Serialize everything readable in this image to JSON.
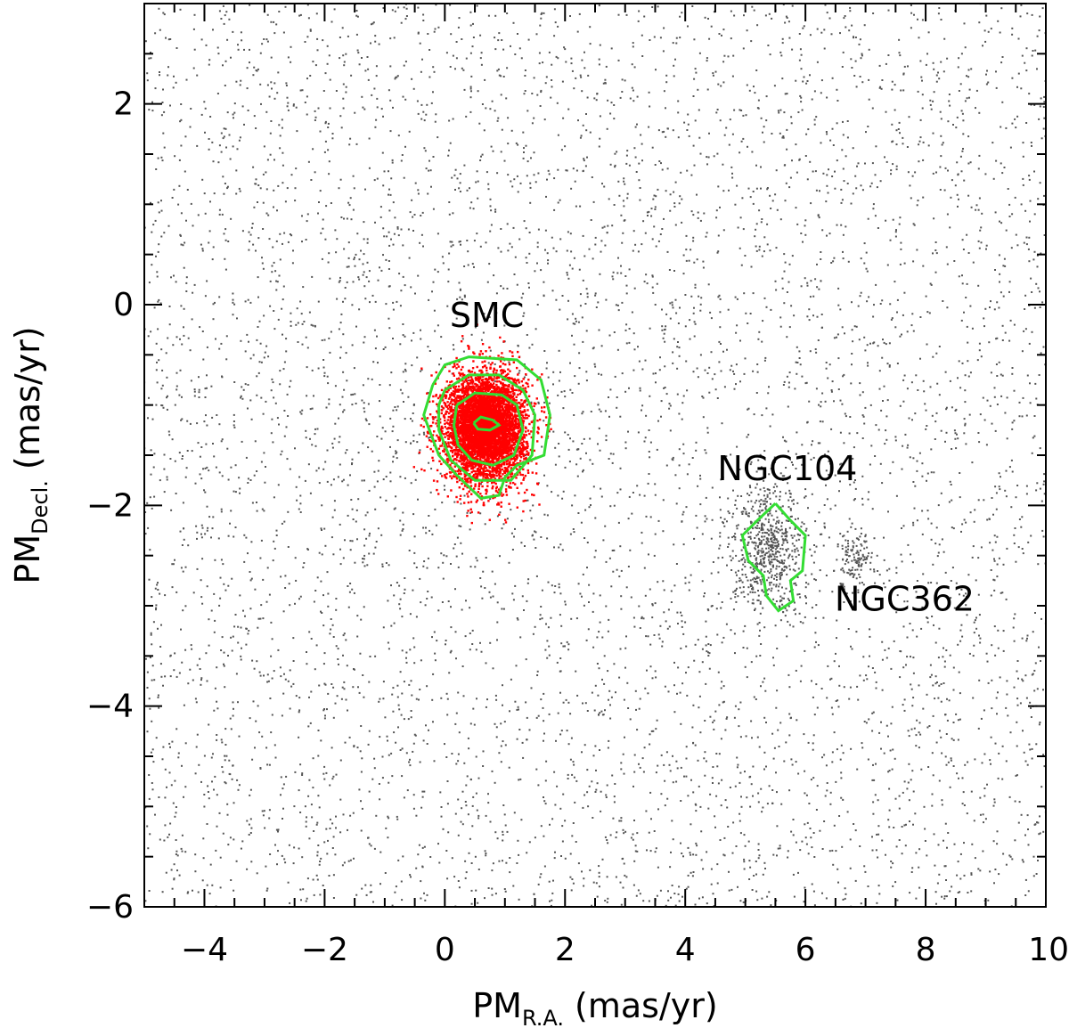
{
  "chart_data": {
    "type": "scatter",
    "title": "",
    "xlabel": {
      "main": "PM",
      "sub": "R.A.",
      "unit": "(mas/yr)"
    },
    "ylabel": {
      "main": "PM",
      "sub": "Decl.",
      "unit": "(mas/yr)"
    },
    "xlim": [
      -5,
      10
    ],
    "ylim": [
      -6,
      3
    ],
    "xticks": [
      -4,
      -2,
      0,
      2,
      4,
      6,
      8,
      10
    ],
    "xtick_labels": [
      "−4",
      "−2",
      "0",
      "2",
      "4",
      "6",
      "8",
      "10"
    ],
    "yticks": [
      2,
      0,
      -2,
      -4,
      -6
    ],
    "ytick_labels": [
      "2",
      "0",
      "−2",
      "−4",
      "−6"
    ],
    "grid": false,
    "colors": {
      "field_stars": "#555555",
      "smc_members": "#ff0000",
      "contours": "#33dd33"
    },
    "field": {
      "approx_count": 6000
    },
    "clusters": [
      {
        "label": "SMC",
        "center": [
          0.68,
          -1.22
        ],
        "spread": [
          0.33,
          0.27
        ],
        "color": "#ff0000",
        "approx_count": 5000
      },
      {
        "label": "NGC104",
        "center": [
          5.4,
          -2.45
        ],
        "spread": [
          0.3,
          0.3
        ],
        "color": "#555555",
        "approx_count": 600
      },
      {
        "label": "NGC362",
        "center": [
          6.8,
          -2.5
        ],
        "spread": [
          0.15,
          0.15
        ],
        "color": "#555555",
        "approx_count": 120
      }
    ],
    "annotations": [
      {
        "text": "SMC",
        "x": 0.7,
        "y": -0.22
      },
      {
        "text": "NGC104",
        "x": 5.7,
        "y": -1.75
      },
      {
        "text": "NGC362",
        "x": 7.65,
        "y": -3.05
      }
    ],
    "contours": [
      {
        "name": "smc-contour-outer",
        "points": [
          [
            -0.2,
            -0.8
          ],
          [
            0.0,
            -0.6
          ],
          [
            0.4,
            -0.52
          ],
          [
            1.2,
            -0.55
          ],
          [
            1.6,
            -0.75
          ],
          [
            1.75,
            -1.1
          ],
          [
            1.65,
            -1.5
          ],
          [
            1.2,
            -1.6
          ],
          [
            1.0,
            -1.72
          ],
          [
            0.9,
            -1.9
          ],
          [
            0.6,
            -1.93
          ],
          [
            0.2,
            -1.7
          ],
          [
            -0.1,
            -1.5
          ],
          [
            -0.35,
            -1.1
          ],
          [
            -0.2,
            -0.8
          ]
        ]
      },
      {
        "name": "smc-contour-mid",
        "points": [
          [
            0.0,
            -0.85
          ],
          [
            0.4,
            -0.7
          ],
          [
            0.9,
            -0.7
          ],
          [
            1.3,
            -0.85
          ],
          [
            1.5,
            -1.1
          ],
          [
            1.45,
            -1.5
          ],
          [
            1.1,
            -1.75
          ],
          [
            0.5,
            -1.75
          ],
          [
            0.1,
            -1.55
          ],
          [
            -0.1,
            -1.25
          ],
          [
            -0.1,
            -1.0
          ],
          [
            0.0,
            -0.85
          ]
        ]
      },
      {
        "name": "smc-contour-inner",
        "points": [
          [
            0.2,
            -1.0
          ],
          [
            0.5,
            -0.88
          ],
          [
            0.95,
            -0.9
          ],
          [
            1.2,
            -1.0
          ],
          [
            1.3,
            -1.25
          ],
          [
            1.15,
            -1.5
          ],
          [
            0.8,
            -1.6
          ],
          [
            0.45,
            -1.55
          ],
          [
            0.22,
            -1.4
          ],
          [
            0.15,
            -1.2
          ],
          [
            0.2,
            -1.0
          ]
        ]
      },
      {
        "name": "smc-contour-core",
        "points": [
          [
            0.48,
            -1.18
          ],
          [
            0.6,
            -1.12
          ],
          [
            0.8,
            -1.15
          ],
          [
            0.9,
            -1.2
          ],
          [
            0.75,
            -1.25
          ],
          [
            0.55,
            -1.24
          ],
          [
            0.48,
            -1.18
          ]
        ]
      },
      {
        "name": "ngc104-contour",
        "points": [
          [
            5.5,
            -1.98
          ],
          [
            5.75,
            -2.15
          ],
          [
            6.0,
            -2.3
          ],
          [
            5.95,
            -2.65
          ],
          [
            5.75,
            -2.75
          ],
          [
            5.8,
            -2.95
          ],
          [
            5.55,
            -3.05
          ],
          [
            5.35,
            -2.9
          ],
          [
            5.3,
            -2.7
          ],
          [
            5.05,
            -2.55
          ],
          [
            4.95,
            -2.3
          ],
          [
            5.2,
            -2.15
          ],
          [
            5.5,
            -1.98
          ]
        ]
      }
    ]
  }
}
